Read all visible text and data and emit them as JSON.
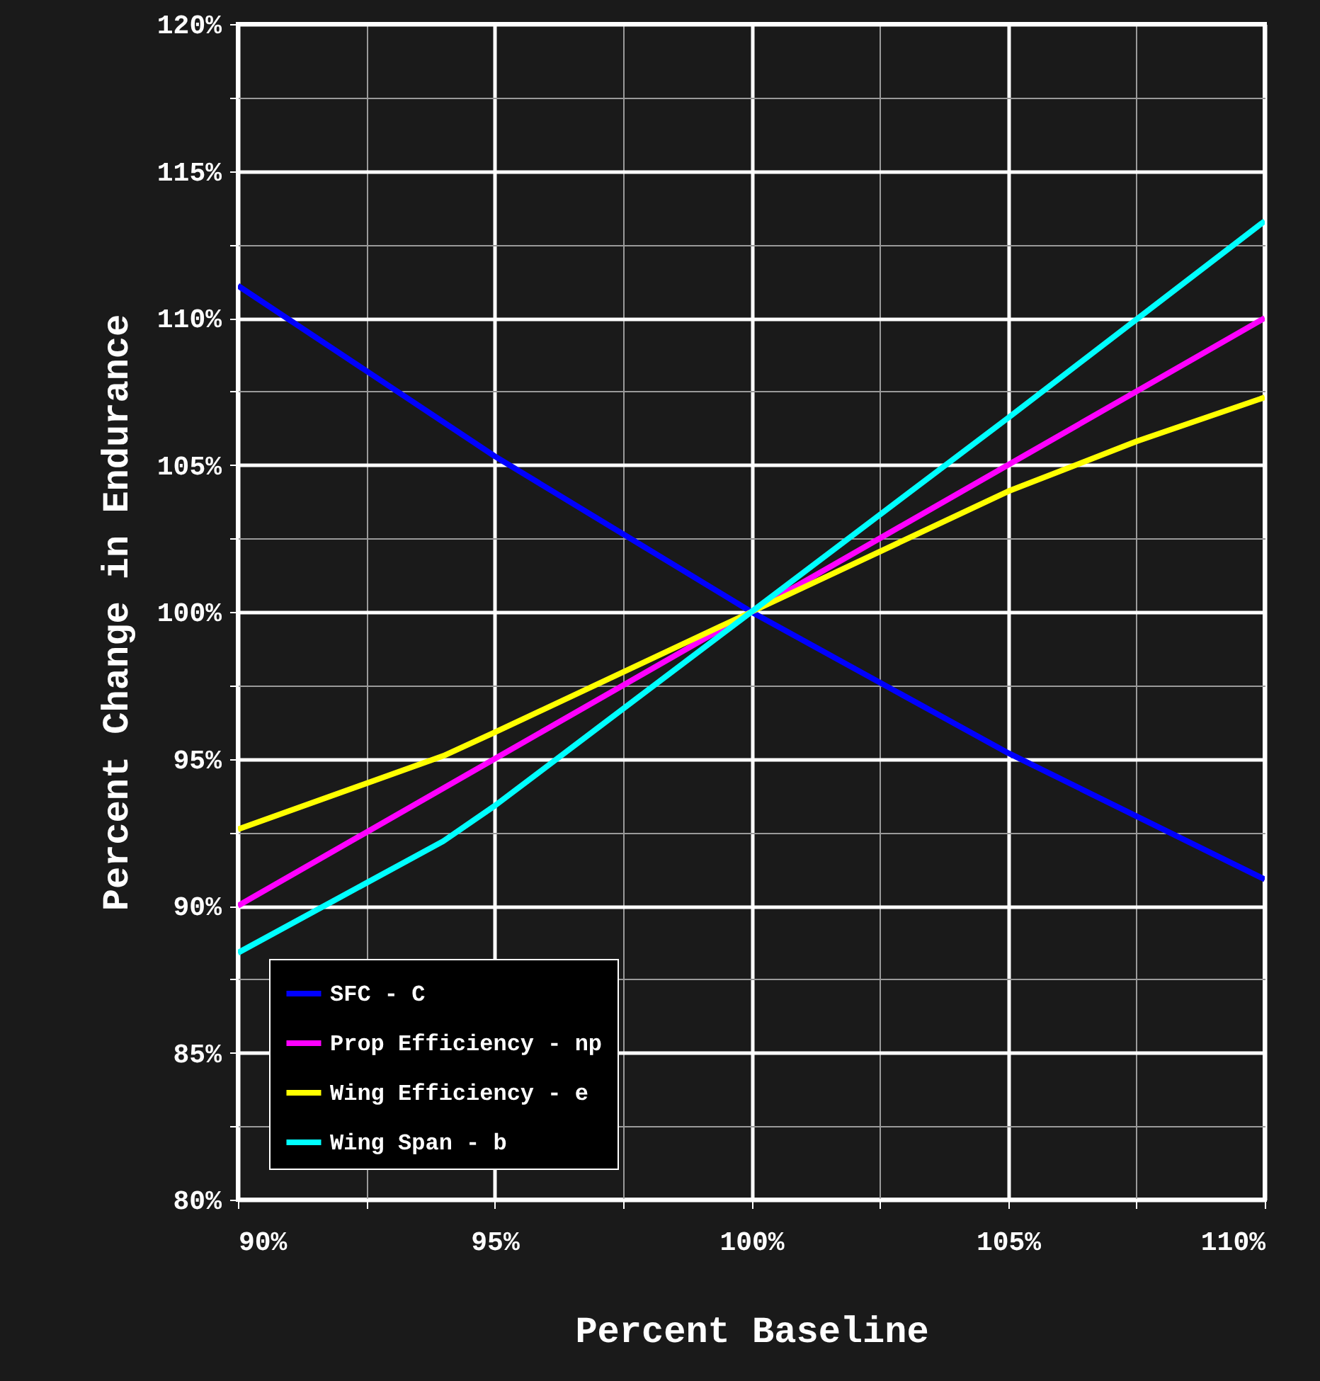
{
  "chart_data": {
    "type": "line",
    "xlabel": "Percent Baseline",
    "ylabel": "Percent Change in Endurance",
    "xlim": [
      90,
      110
    ],
    "ylim": [
      80,
      120
    ],
    "xticks": [
      {
        "value": 90,
        "label": "90%"
      },
      {
        "value": 92.5,
        "label": null
      },
      {
        "value": 95,
        "label": "95%"
      },
      {
        "value": 97.5,
        "label": null
      },
      {
        "value": 100,
        "label": "100%"
      },
      {
        "value": 102.5,
        "label": null
      },
      {
        "value": 105,
        "label": "105%"
      },
      {
        "value": 107.5,
        "label": null
      },
      {
        "value": 110,
        "label": "110%"
      }
    ],
    "yticks": [
      {
        "value": 80,
        "label": "80%"
      },
      {
        "value": 82.5,
        "label": null
      },
      {
        "value": 85,
        "label": "85%"
      },
      {
        "value": 87.5,
        "label": null
      },
      {
        "value": 90,
        "label": "90%"
      },
      {
        "value": 92.5,
        "label": null
      },
      {
        "value": 95,
        "label": "95%"
      },
      {
        "value": 97.5,
        "label": null
      },
      {
        "value": 100,
        "label": "100%"
      },
      {
        "value": 102.5,
        "label": null
      },
      {
        "value": 105,
        "label": "105%"
      },
      {
        "value": 107.5,
        "label": null
      },
      {
        "value": 110,
        "label": "110%"
      },
      {
        "value": 112.5,
        "label": null
      },
      {
        "value": 115,
        "label": "115%"
      },
      {
        "value": 117.5,
        "label": null
      },
      {
        "value": 120,
        "label": "120%"
      }
    ],
    "grid": true,
    "legend": "bottom left",
    "marker": "none",
    "line_style": "solid",
    "series": [
      {
        "name": "SFC - C",
        "color": "#0000ff",
        "x": [
          90,
          95,
          100,
          105,
          110
        ],
        "values": [
          111.1,
          105.3,
          100,
          95.2,
          90.9
        ]
      },
      {
        "name": "Prop Efficiency - np",
        "color": "#ff00ff",
        "x": [
          90,
          95,
          100,
          105,
          110
        ],
        "values": [
          90,
          95,
          100,
          105,
          110
        ]
      },
      {
        "name": "Wing Efficiency - e",
        "color": "#ffff00",
        "x": [
          90,
          94,
          95,
          100,
          105,
          107.5,
          110
        ],
        "values": [
          92.6,
          95.1,
          95.9,
          100,
          104.1,
          105.8,
          107.3
        ]
      },
      {
        "name": "Wing Span - b",
        "color": "#00ffff",
        "x": [
          90,
          94,
          95,
          100,
          105,
          110
        ],
        "values": [
          88.4,
          92.2,
          93.4,
          100,
          106.6,
          113.3
        ]
      }
    ]
  }
}
